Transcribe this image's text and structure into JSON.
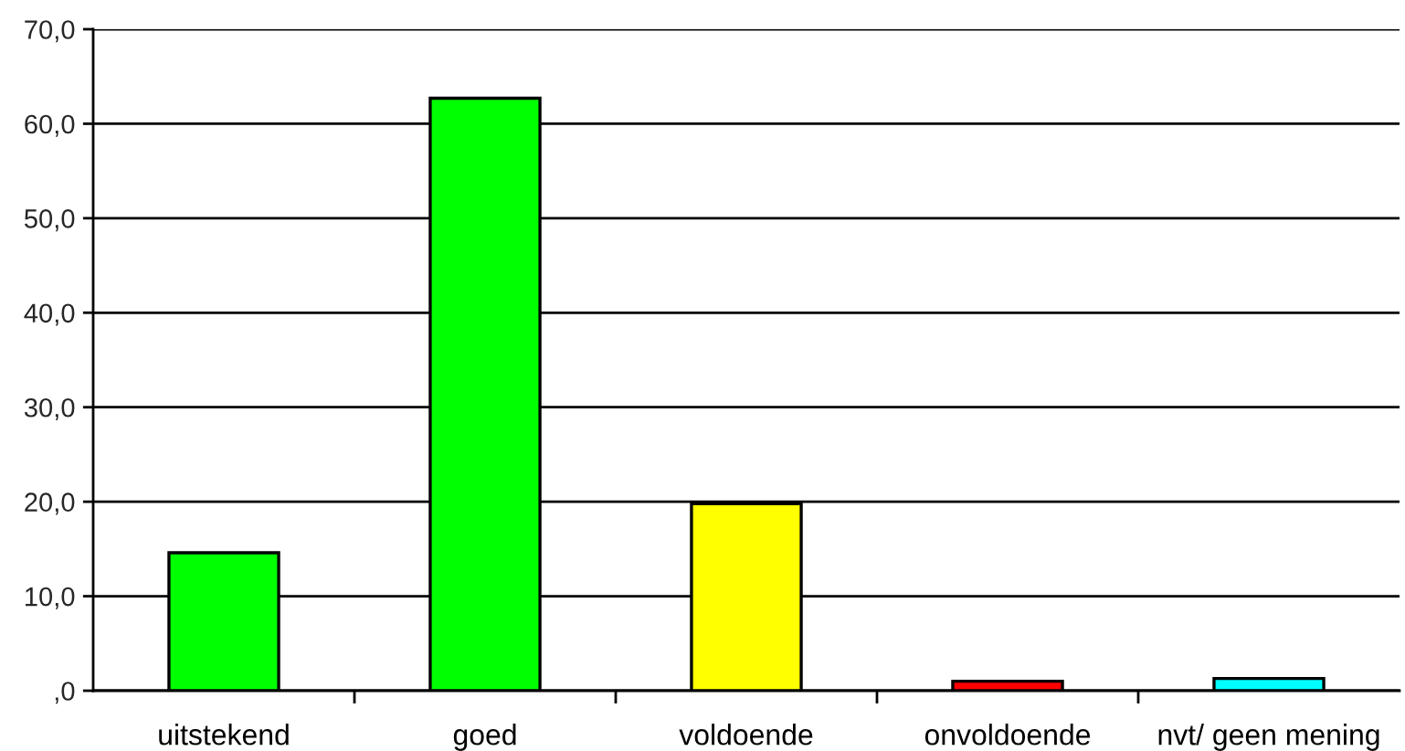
{
  "chart_data": {
    "type": "bar",
    "categories": [
      "uitstekend",
      "goed",
      "voldoende",
      "onvoldoende",
      "nvt/ geen mening"
    ],
    "values": [
      14.6,
      62.7,
      19.8,
      1.0,
      1.3
    ],
    "colors": [
      "#00ff00",
      "#00ff00",
      "#ffff00",
      "#ff0000",
      "#00ffff"
    ],
    "ylim": [
      0,
      70
    ],
    "yticks": [
      {
        "value": 0,
        "label": ",0"
      },
      {
        "value": 10,
        "label": "10,0"
      },
      {
        "value": 20,
        "label": "20,0"
      },
      {
        "value": 30,
        "label": "30,0"
      },
      {
        "value": 40,
        "label": "40,0"
      },
      {
        "value": 50,
        "label": "50,0"
      },
      {
        "value": 60,
        "label": "60,0"
      },
      {
        "value": 70,
        "label": "70,0"
      }
    ],
    "grid": "y"
  }
}
